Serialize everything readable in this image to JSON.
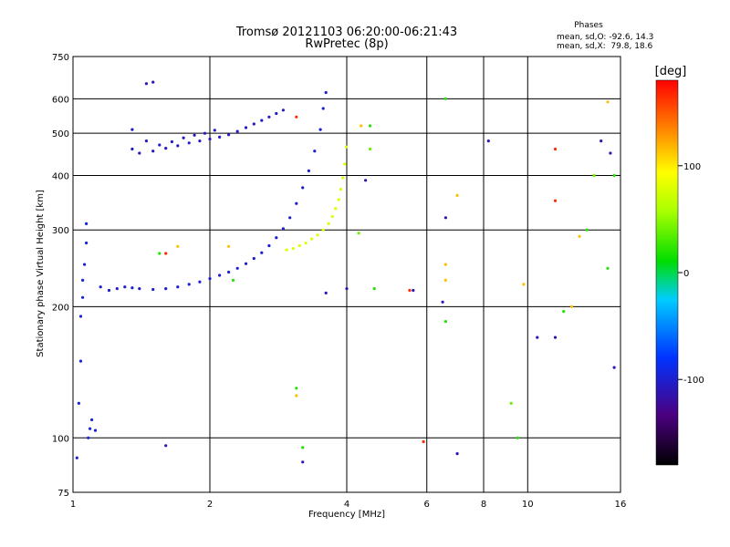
{
  "chart_data": {
    "type": "scatter",
    "title": "Tromsø 20121103 06:20:00-06:21:43",
    "subtitle": "RwPretec (8p)",
    "xlabel": "Frequency [MHz]",
    "ylabel": "Stationary phase Virtual Height [km]",
    "x_scale": "log",
    "y_scale": "log",
    "xlim": [
      1,
      16
    ],
    "ylim": [
      75,
      750
    ],
    "x_ticks": [
      1,
      2,
      4,
      6,
      8,
      10,
      16
    ],
    "y_ticks": [
      75,
      100,
      200,
      300,
      400,
      500,
      600,
      750
    ],
    "grid": true,
    "phase_stats": {
      "heading": "Phases",
      "line_o": "mean, sd,O: -92.6, 14.3",
      "line_x": "mean, sd,X:  79.8, 18.6"
    },
    "colorbar": {
      "label": "[deg]",
      "range": [
        -180,
        180
      ],
      "ticks": [
        100,
        0,
        -100
      ]
    },
    "series": [
      {
        "points": [
          [
            1.35,
            460
          ],
          [
            1.4,
            450
          ],
          [
            1.5,
            455
          ],
          [
            1.6,
            462
          ],
          [
            1.7,
            468
          ],
          [
            1.8,
            475
          ],
          [
            1.9,
            480
          ],
          [
            2.0,
            485
          ],
          [
            2.1,
            490
          ],
          [
            2.2,
            496
          ],
          [
            2.3,
            505
          ],
          [
            2.4,
            515
          ],
          [
            2.5,
            525
          ],
          [
            2.6,
            535
          ],
          [
            2.7,
            545
          ],
          [
            2.8,
            555
          ],
          [
            2.9,
            565
          ],
          [
            1.35,
            510
          ],
          [
            1.45,
            480
          ],
          [
            1.55,
            470
          ],
          [
            1.65,
            478
          ],
          [
            1.75,
            488
          ],
          [
            1.85,
            495
          ],
          [
            1.95,
            500
          ],
          [
            2.05,
            508
          ]
        ],
        "phase": -105
      },
      {
        "points": [
          [
            1.15,
            222
          ],
          [
            1.2,
            218
          ],
          [
            1.25,
            220
          ],
          [
            1.3,
            222
          ],
          [
            1.35,
            221
          ],
          [
            1.4,
            220
          ],
          [
            1.5,
            219
          ],
          [
            1.6,
            220
          ],
          [
            1.7,
            222
          ],
          [
            1.8,
            225
          ],
          [
            1.9,
            228
          ],
          [
            2.0,
            232
          ],
          [
            2.1,
            236
          ],
          [
            2.2,
            240
          ],
          [
            2.3,
            245
          ],
          [
            2.4,
            251
          ],
          [
            2.5,
            258
          ],
          [
            2.6,
            266
          ],
          [
            2.7,
            276
          ],
          [
            2.8,
            288
          ],
          [
            2.9,
            302
          ],
          [
            3.0,
            320
          ],
          [
            3.1,
            345
          ],
          [
            3.2,
            375
          ],
          [
            3.3,
            410
          ],
          [
            3.4,
            455
          ],
          [
            3.5,
            510
          ],
          [
            3.55,
            570
          ],
          [
            3.6,
            620
          ]
        ],
        "phase": -100
      },
      {
        "points": [
          [
            2.95,
            270
          ],
          [
            3.05,
            272
          ],
          [
            3.15,
            276
          ],
          [
            3.25,
            280
          ],
          [
            3.35,
            286
          ],
          [
            3.45,
            292
          ],
          [
            3.55,
            300
          ],
          [
            3.65,
            310
          ],
          [
            3.72,
            322
          ],
          [
            3.78,
            336
          ],
          [
            3.84,
            352
          ],
          [
            3.88,
            372
          ],
          [
            3.92,
            395
          ],
          [
            3.96,
            425
          ],
          [
            3.99,
            465
          ]
        ],
        "phase": 80
      },
      {
        "points": [
          [
            1.02,
            90
          ],
          [
            1.03,
            120
          ],
          [
            1.04,
            150
          ],
          [
            1.04,
            190
          ],
          [
            1.05,
            210
          ],
          [
            1.05,
            230
          ],
          [
            1.06,
            250
          ],
          [
            1.07,
            280
          ],
          [
            1.07,
            310
          ],
          [
            1.08,
            100
          ],
          [
            1.09,
            105
          ],
          [
            1.1,
            110
          ],
          [
            1.12,
            104
          ]
        ],
        "phase": -95
      },
      {
        "points": [
          [
            1.45,
            650
          ],
          [
            1.5,
            655
          ],
          [
            1.6,
            96
          ],
          [
            3.2,
            88
          ],
          [
            3.6,
            215
          ],
          [
            4.0,
            220
          ],
          [
            4.4,
            390
          ],
          [
            5.6,
            218
          ],
          [
            6.5,
            205
          ],
          [
            6.6,
            320
          ],
          [
            7.0,
            92
          ],
          [
            8.2,
            480
          ],
          [
            10.5,
            170
          ],
          [
            11.5,
            170
          ],
          [
            14.5,
            480
          ],
          [
            15.2,
            450
          ],
          [
            15.5,
            145
          ]
        ],
        "phase": -110
      },
      {
        "points": [
          [
            1.55,
            265
          ],
          [
            2.25,
            230
          ],
          [
            3.1,
            130
          ],
          [
            3.2,
            95
          ],
          [
            4.5,
            520
          ],
          [
            4.6,
            220
          ],
          [
            6.6,
            185
          ],
          [
            6.6,
            600
          ],
          [
            9.5,
            100
          ],
          [
            12.0,
            195
          ],
          [
            13.5,
            300
          ],
          [
            15.0,
            245
          ],
          [
            15.5,
            400
          ]
        ],
        "phase": 20
      },
      {
        "points": [
          [
            1.6,
            265
          ],
          [
            3.1,
            545
          ],
          [
            5.5,
            218
          ],
          [
            5.9,
            98
          ],
          [
            11.5,
            460
          ],
          [
            11.5,
            350
          ]
        ],
        "phase": 165
      },
      {
        "points": [
          [
            1.7,
            275
          ],
          [
            2.2,
            275
          ],
          [
            3.1,
            125
          ],
          [
            4.3,
            520
          ],
          [
            6.6,
            230
          ],
          [
            6.6,
            250
          ],
          [
            7.0,
            360
          ],
          [
            9.8,
            225
          ],
          [
            12.5,
            200
          ],
          [
            13.0,
            290
          ],
          [
            15.0,
            590
          ]
        ],
        "phase": 115
      },
      {
        "points": [
          [
            4.5,
            460
          ],
          [
            4.25,
            295
          ],
          [
            9.2,
            120
          ],
          [
            14.0,
            400
          ]
        ],
        "phase": 40
      }
    ]
  }
}
